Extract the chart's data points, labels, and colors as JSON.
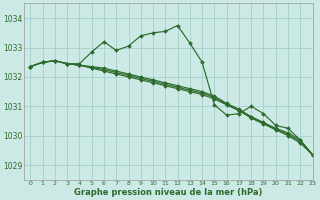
{
  "title": "Graphe pression niveau de la mer (hPa)",
  "bg_color": "#cce9e5",
  "grid_color": "#aad4cf",
  "line_color": "#2d6b2d",
  "xlim": [
    -0.5,
    23
  ],
  "ylim": [
    1028.5,
    1034.5
  ],
  "yticks": [
    1029,
    1030,
    1031,
    1032,
    1033,
    1034
  ],
  "xticks": [
    0,
    1,
    2,
    3,
    4,
    5,
    6,
    7,
    8,
    9,
    10,
    11,
    12,
    13,
    14,
    15,
    16,
    17,
    18,
    19,
    20,
    21,
    22,
    23
  ],
  "series": [
    {
      "x": [
        0,
        1,
        2,
        3,
        4,
        5,
        6,
        7,
        8,
        9,
        10,
        11,
        12,
        13,
        14,
        15,
        16,
        17,
        18,
        19,
        20,
        21,
        22,
        23
      ],
      "y": [
        1032.35,
        1032.5,
        1032.55,
        1032.45,
        1032.45,
        1032.85,
        1033.2,
        1032.9,
        1033.05,
        1033.4,
        1033.5,
        1033.55,
        1033.75,
        1033.15,
        1032.5,
        1031.05,
        1030.7,
        1030.75,
        1031.0,
        1030.75,
        1030.35,
        1030.25,
        1029.85,
        1029.35
      ]
    },
    {
      "x": [
        0,
        1,
        2,
        3,
        4,
        5,
        6,
        7,
        8,
        9,
        10,
        11,
        12,
        13,
        14,
        15,
        16,
        17,
        18,
        19,
        20,
        21,
        22,
        23
      ],
      "y": [
        1032.35,
        1032.5,
        1032.55,
        1032.45,
        1032.4,
        1032.3,
        1032.2,
        1032.1,
        1032.0,
        1031.9,
        1031.8,
        1031.7,
        1031.6,
        1031.5,
        1031.4,
        1031.25,
        1031.05,
        1030.85,
        1030.6,
        1030.4,
        1030.2,
        1030.0,
        1029.75,
        1029.35
      ]
    },
    {
      "x": [
        0,
        1,
        2,
        3,
        4,
        5,
        6,
        7,
        8,
        9,
        10,
        11,
        12,
        13,
        14,
        15,
        16,
        17,
        18,
        19,
        20,
        21,
        22,
        23
      ],
      "y": [
        1032.35,
        1032.5,
        1032.55,
        1032.45,
        1032.4,
        1032.35,
        1032.3,
        1032.2,
        1032.1,
        1032.0,
        1031.9,
        1031.8,
        1031.7,
        1031.6,
        1031.5,
        1031.35,
        1031.1,
        1030.9,
        1030.65,
        1030.45,
        1030.25,
        1030.1,
        1029.85,
        1029.35
      ]
    },
    {
      "x": [
        0,
        1,
        2,
        3,
        4,
        5,
        6,
        7,
        8,
        9,
        10,
        11,
        12,
        13,
        14,
        15,
        16,
        17,
        18,
        19,
        20,
        21,
        22,
        23
      ],
      "y": [
        1032.35,
        1032.5,
        1032.55,
        1032.45,
        1032.4,
        1032.32,
        1032.25,
        1032.15,
        1032.05,
        1031.95,
        1031.85,
        1031.75,
        1031.65,
        1031.55,
        1031.45,
        1031.3,
        1031.07,
        1030.87,
        1030.62,
        1030.42,
        1030.22,
        1030.05,
        1029.8,
        1029.35
      ]
    }
  ]
}
